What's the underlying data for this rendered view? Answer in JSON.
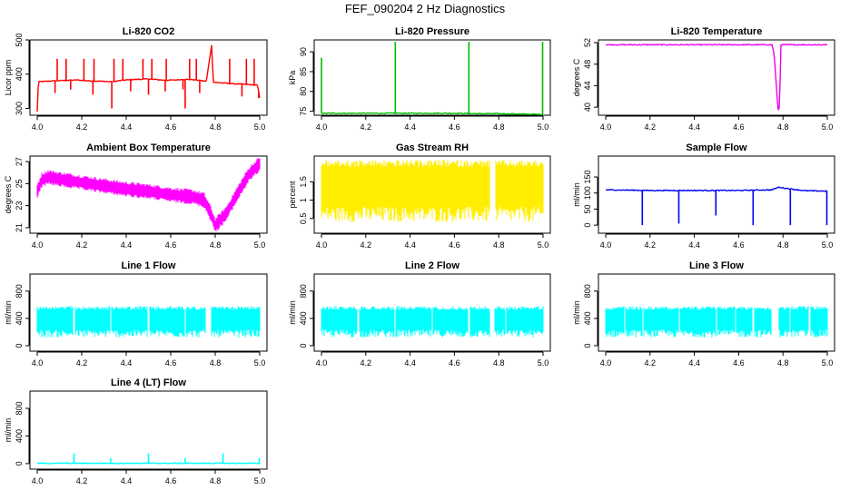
{
  "figure_title": "FEF_090204  2 Hz Diagnostics",
  "chart_data": [
    {
      "type": "line",
      "title": "Li-820 CO2",
      "xlabel": "",
      "ylabel": "Licor ppm",
      "color": "#ff0000",
      "xlim": [
        4.0,
        5.0
      ],
      "ylim": [
        280,
        500
      ],
      "xticks": [
        "4.0",
        "4.2",
        "4.4",
        "4.6",
        "4.8",
        "5.0"
      ],
      "yticks": [
        300,
        400,
        500
      ],
      "series": [
        {
          "name": "CO2",
          "x": [
            4.0,
            4.005,
            4.02,
            4.06,
            4.1,
            4.14,
            4.18,
            4.22,
            4.26,
            4.3,
            4.34,
            4.38,
            4.42,
            4.46,
            4.5,
            4.54,
            4.58,
            4.62,
            4.66,
            4.7,
            4.74,
            4.76,
            4.785,
            4.79,
            4.8,
            4.84,
            4.88,
            4.92,
            4.96,
            4.99,
            5.0
          ],
          "y": [
            290,
            378,
            378,
            380,
            381,
            382,
            383,
            381,
            380,
            379,
            378,
            382,
            384,
            385,
            386,
            384,
            382,
            383,
            385,
            384,
            381,
            379,
            490,
            378,
            376,
            374,
            372,
            371,
            369,
            368,
            330
          ]
        }
      ],
      "spikes": [
        {
          "x": 4.09,
          "y": 445
        },
        {
          "x": 4.13,
          "y": 445
        },
        {
          "x": 4.21,
          "y": 445
        },
        {
          "x": 4.255,
          "y": 445
        },
        {
          "x": 4.345,
          "y": 445
        },
        {
          "x": 4.385,
          "y": 445
        },
        {
          "x": 4.475,
          "y": 445
        },
        {
          "x": 4.515,
          "y": 445
        },
        {
          "x": 4.58,
          "y": 445
        },
        {
          "x": 4.685,
          "y": 445
        },
        {
          "x": 4.715,
          "y": 445
        },
        {
          "x": 4.865,
          "y": 445
        },
        {
          "x": 4.94,
          "y": 445
        },
        {
          "x": 4.975,
          "y": 445
        },
        {
          "x": 4.08,
          "y": 345
        },
        {
          "x": 4.15,
          "y": 355
        },
        {
          "x": 4.25,
          "y": 340
        },
        {
          "x": 4.335,
          "y": 300
        },
        {
          "x": 4.42,
          "y": 350
        },
        {
          "x": 4.5,
          "y": 340
        },
        {
          "x": 4.575,
          "y": 350
        },
        {
          "x": 4.655,
          "y": 355
        },
        {
          "x": 4.665,
          "y": 300
        },
        {
          "x": 4.73,
          "y": 345
        },
        {
          "x": 4.92,
          "y": 335
        },
        {
          "x": 4.995,
          "y": 330
        }
      ]
    },
    {
      "type": "line",
      "title": "Li-820 Pressure",
      "xlabel": "",
      "ylabel": "kPa",
      "color": "#00bb00",
      "xlim": [
        4.0,
        5.0
      ],
      "ylim": [
        74,
        93
      ],
      "xticks": [
        "4.0",
        "4.2",
        "4.4",
        "4.6",
        "4.8",
        "5.0"
      ],
      "yticks": [
        75,
        80,
        85,
        90
      ],
      "series": [
        {
          "name": "Pressure",
          "x": [
            4.0,
            4.005,
            4.1,
            4.2,
            4.3,
            4.4,
            4.5,
            4.6,
            4.7,
            4.8,
            4.9,
            5.0
          ],
          "y": [
            74.5,
            74.5,
            74.5,
            74.5,
            74.5,
            74.5,
            74.5,
            74.5,
            74.4,
            74.4,
            74.3,
            74.2
          ]
        }
      ],
      "spikes": [
        {
          "x": 4.0,
          "y": 88.5
        },
        {
          "x": 4.333,
          "y": 92.5
        },
        {
          "x": 4.665,
          "y": 92.5
        },
        {
          "x": 4.998,
          "y": 92.5
        }
      ]
    },
    {
      "type": "line",
      "title": "Li-820 Temperature",
      "xlabel": "",
      "ylabel": "degrees C",
      "color": "#ee00ee",
      "xlim": [
        4.0,
        5.0
      ],
      "ylim": [
        38.5,
        52.5
      ],
      "xticks": [
        "4.0",
        "4.2",
        "4.4",
        "4.6",
        "4.8",
        "5.0"
      ],
      "yticks": [
        40,
        44,
        48,
        52
      ],
      "series": [
        {
          "name": "Temperature",
          "x": [
            4.0,
            4.2,
            4.4,
            4.6,
            4.75,
            4.76,
            4.77,
            4.775,
            4.78,
            4.785,
            4.79,
            4.8,
            4.9,
            5.0
          ],
          "y": [
            51.6,
            51.6,
            51.6,
            51.6,
            51.6,
            50.0,
            44.0,
            41.0,
            39.0,
            40.5,
            51.6,
            51.6,
            51.6,
            51.6
          ]
        }
      ]
    },
    {
      "type": "line",
      "title": "Ambient Box Temperature",
      "xlabel": "",
      "ylabel": "degrees C",
      "color": "#ff00ff",
      "band": 1.4,
      "xlim": [
        4.0,
        5.0
      ],
      "ylim": [
        20.5,
        27.5
      ],
      "xticks": [
        "4.0",
        "4.2",
        "4.4",
        "4.6",
        "4.8",
        "5.0"
      ],
      "yticks": [
        21,
        23,
        25,
        27
      ],
      "series": [
        {
          "name": "Box Temperature",
          "x": [
            4.0,
            4.02,
            4.05,
            4.1,
            4.2,
            4.3,
            4.4,
            4.5,
            4.6,
            4.7,
            4.75,
            4.78,
            4.8,
            4.85,
            4.9,
            4.95,
            5.0
          ],
          "y": [
            24.3,
            25.3,
            25.6,
            25.4,
            25.1,
            24.8,
            24.5,
            24.3,
            24.0,
            23.8,
            23.5,
            22.3,
            21.2,
            22.3,
            24.1,
            25.8,
            26.8
          ]
        }
      ]
    },
    {
      "type": "line",
      "title": "Gas Stream RH",
      "xlabel": "",
      "ylabel": "percent",
      "color": "#ffee00",
      "band_range": [
        0.4,
        2.1
      ],
      "gaps": [
        [
          4.76,
          4.785
        ]
      ],
      "xlim": [
        4.0,
        5.0
      ],
      "ylim": [
        0.1,
        2.2
      ],
      "xticks": [
        "4.0",
        "4.2",
        "4.4",
        "4.6",
        "4.8",
        "5.0"
      ],
      "yticks": [
        0.5,
        1.0,
        1.5
      ],
      "series": [
        {
          "name": "RH",
          "x": [
            4.0,
            5.0
          ],
          "y": [
            1.2,
            1.2
          ]
        }
      ]
    },
    {
      "type": "line",
      "title": "Sample Flow",
      "xlabel": "",
      "ylabel": "ml/min",
      "color": "#0000ee",
      "xlim": [
        4.0,
        5.0
      ],
      "ylim": [
        -25,
        215
      ],
      "xticks": [
        "4.0",
        "4.2",
        "4.4",
        "4.6",
        "4.8",
        "5.0"
      ],
      "yticks": [
        0,
        50,
        100,
        150
      ],
      "series": [
        {
          "name": "Sample Flow",
          "x": [
            4.0,
            4.2,
            4.4,
            4.6,
            4.75,
            4.78,
            4.82,
            4.9,
            5.0
          ],
          "y": [
            110,
            108,
            108,
            108,
            110,
            118,
            114,
            107,
            106
          ]
        }
      ],
      "spikes": [
        {
          "x": 4.165,
          "y": 0
        },
        {
          "x": 4.33,
          "y": 5
        },
        {
          "x": 4.497,
          "y": 30
        },
        {
          "x": 4.665,
          "y": 0
        },
        {
          "x": 4.833,
          "y": 0
        },
        {
          "x": 4.998,
          "y": 0
        }
      ]
    },
    {
      "type": "line",
      "title": "Line 1 Flow",
      "xlabel": "",
      "ylabel": "ml/min",
      "color": "#00ffff",
      "band_range": [
        120,
        580
      ],
      "gaps": [
        [
          4.162,
          4.168
        ],
        [
          4.328,
          4.334
        ],
        [
          4.497,
          4.503
        ],
        [
          4.663,
          4.669
        ],
        [
          4.758,
          4.78
        ]
      ],
      "xlim": [
        4.0,
        5.0
      ],
      "ylim": [
        -80,
        1050
      ],
      "xticks": [
        "4.0",
        "4.2",
        "4.4",
        "4.6",
        "4.8",
        "5.0"
      ],
      "yticks": [
        0,
        400,
        800
      ],
      "series": [
        {
          "name": "Line 1",
          "x": [
            4.0,
            5.0
          ],
          "y": [
            350,
            350
          ]
        }
      ]
    },
    {
      "type": "line",
      "title": "Line 2 Flow",
      "xlabel": "",
      "ylabel": "ml/min",
      "color": "#00ffff",
      "band_range": [
        120,
        580
      ],
      "gaps": [
        [
          4.163,
          4.169
        ],
        [
          4.165,
          4.17
        ],
        [
          4.33,
          4.336
        ],
        [
          4.497,
          4.503
        ],
        [
          4.663,
          4.669
        ],
        [
          4.76,
          4.78
        ],
        [
          4.83,
          4.836
        ]
      ],
      "xlim": [
        4.0,
        5.0
      ],
      "ylim": [
        -80,
        1050
      ],
      "xticks": [
        "4.0",
        "4.2",
        "4.4",
        "4.6",
        "4.8",
        "5.0"
      ],
      "yticks": [
        0,
        400,
        800
      ],
      "series": [
        {
          "name": "Line 2",
          "x": [
            4.0,
            5.0
          ],
          "y": [
            350,
            350
          ]
        }
      ]
    },
    {
      "type": "line",
      "title": "Line 3 Flow",
      "xlabel": "",
      "ylabel": "ml/min",
      "color": "#00ffff",
      "band_range": [
        120,
        580
      ],
      "gaps": [
        [
          4.082,
          4.088
        ],
        [
          4.165,
          4.171
        ],
        [
          4.33,
          4.336
        ],
        [
          4.497,
          4.503
        ],
        [
          4.583,
          4.589
        ],
        [
          4.663,
          4.669
        ],
        [
          4.75,
          4.78
        ],
        [
          4.83,
          4.836
        ],
        [
          4.917,
          4.923
        ]
      ],
      "xlim": [
        4.0,
        5.0
      ],
      "ylim": [
        -80,
        1050
      ],
      "xticks": [
        "4.0",
        "4.2",
        "4.4",
        "4.6",
        "4.8",
        "5.0"
      ],
      "yticks": [
        0,
        400,
        800
      ],
      "series": [
        {
          "name": "Line 3",
          "x": [
            4.0,
            5.0
          ],
          "y": [
            350,
            350
          ]
        }
      ]
    },
    {
      "type": "line",
      "title": "Line 4 (LT) Flow",
      "xlabel": "",
      "ylabel": "ml/min",
      "color": "#00ffff",
      "xlim": [
        4.0,
        5.0
      ],
      "ylim": [
        -80,
        1050
      ],
      "xticks": [
        "4.0",
        "4.2",
        "4.4",
        "4.6",
        "4.8",
        "5.0"
      ],
      "yticks": [
        0,
        400,
        800
      ],
      "series": [
        {
          "name": "Line 4",
          "x": [
            4.0,
            5.0
          ],
          "y": [
            5,
            5
          ]
        }
      ],
      "spikes": [
        {
          "x": 4.165,
          "y": 150
        },
        {
          "x": 4.33,
          "y": 80
        },
        {
          "x": 4.5,
          "y": 150
        },
        {
          "x": 4.665,
          "y": 80
        },
        {
          "x": 4.835,
          "y": 150
        },
        {
          "x": 4.998,
          "y": 80
        }
      ]
    }
  ]
}
